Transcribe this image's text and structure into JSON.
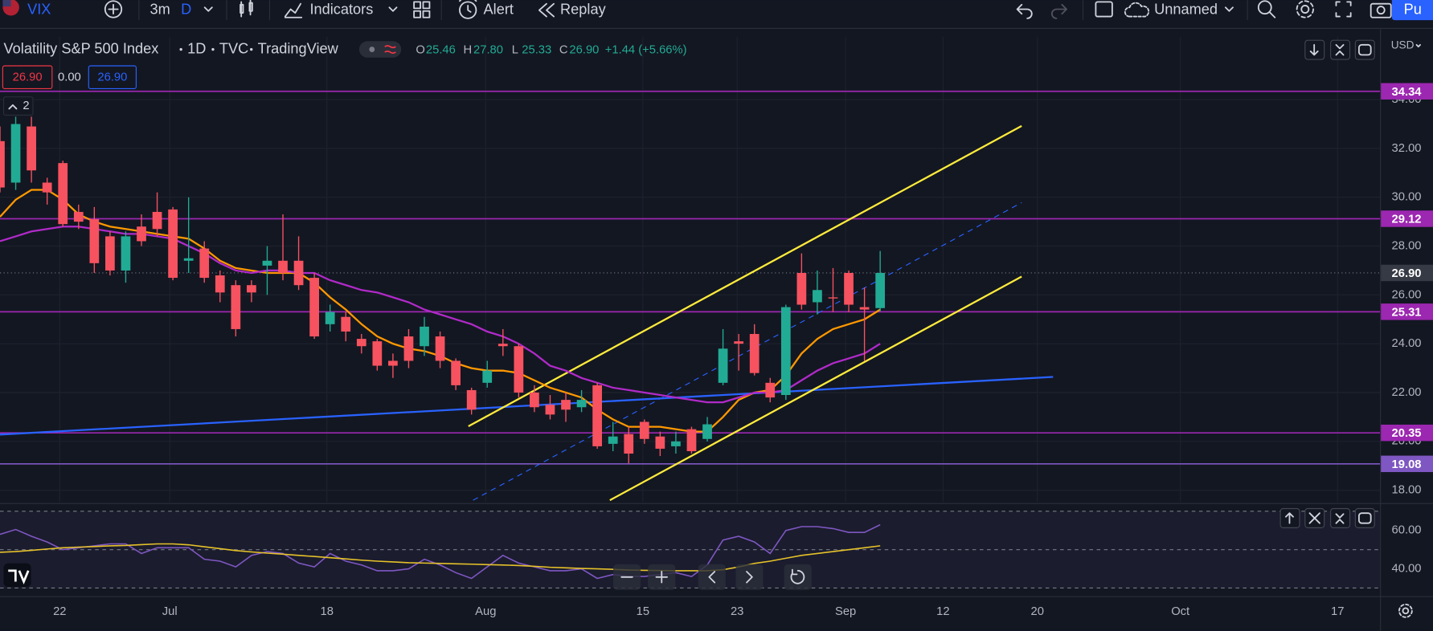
{
  "toolbar": {
    "symbol": "VIX",
    "interval": "3m",
    "interval_type": "D",
    "indicators": "Indicators",
    "alert": "Alert",
    "replay": "Replay",
    "layout_name": "Unnamed",
    "publish": "Pu"
  },
  "legend": {
    "title": "Volatility S&P 500 Index",
    "timeframe": "1D",
    "exchange": "TVC",
    "source": "TradingView",
    "ohlc": [
      {
        "key": "O",
        "value": "25.46"
      },
      {
        "key": "H",
        "value": "27.80"
      },
      {
        "key": "L",
        "value": "25.33"
      },
      {
        "key": "C",
        "value": "26.90"
      }
    ],
    "change": "+1.44 (+5.66%)",
    "bid": "26.90",
    "spread": "0.00",
    "ask": "26.90",
    "indicator_count": "2"
  },
  "currency": "USD",
  "chart_data": [
    {
      "type": "candlestick",
      "up_color": "#22ab94",
      "down_color": "#f7525f",
      "open": [
        32.3,
        30.6,
        32.9,
        30.6,
        31.4,
        29.4,
        29.1,
        28.4,
        27.0,
        28.8,
        29.4,
        29.5,
        27.4,
        27.9,
        26.8,
        26.4,
        26.4,
        27.2,
        27.4,
        27.4,
        26.7,
        24.8,
        25.1,
        24.2,
        24.1,
        23.3,
        24.3,
        23.9,
        24.3,
        23.3,
        22.1,
        22.4,
        24.0,
        23.9,
        22.0,
        21.5,
        21.7,
        21.4,
        22.3,
        19.9,
        20.3,
        20.8,
        20.2,
        19.8,
        20.5,
        20.1,
        22.4,
        24.1,
        24.4,
        22.4,
        21.9,
        26.9,
        25.7,
        25.9,
        26.9,
        25.5,
        25.46
      ],
      "high": [
        32.9,
        33.3,
        33.3,
        30.8,
        31.5,
        29.7,
        29.6,
        28.6,
        28.6,
        29.3,
        30.2,
        29.6,
        30.0,
        28.2,
        27.0,
        26.6,
        26.6,
        28.0,
        29.3,
        28.4,
        26.9,
        25.6,
        25.3,
        24.4,
        24.2,
        23.6,
        24.6,
        25.1,
        24.5,
        23.4,
        22.2,
        23.3,
        24.6,
        24.0,
        22.3,
        21.9,
        22.0,
        22.1,
        22.4,
        20.8,
        20.6,
        20.9,
        20.4,
        20.4,
        20.6,
        21.0,
        24.6,
        24.4,
        24.8,
        22.6,
        25.6,
        27.7,
        27.0,
        27.1,
        27.0,
        26.3,
        27.8
      ],
      "low": [
        30.2,
        30.3,
        30.6,
        29.7,
        28.8,
        28.7,
        26.9,
        26.8,
        26.5,
        28.0,
        28.4,
        26.6,
        26.9,
        26.5,
        25.7,
        24.3,
        25.7,
        26.0,
        26.6,
        26.2,
        24.2,
        24.5,
        24.1,
        23.6,
        22.9,
        22.6,
        23.0,
        23.5,
        23.0,
        22.1,
        21.1,
        22.2,
        23.5,
        21.8,
        21.2,
        20.9,
        20.8,
        21.2,
        19.7,
        19.6,
        19.1,
        19.9,
        19.4,
        19.5,
        19.5,
        20.0,
        22.3,
        22.9,
        22.7,
        21.6,
        21.7,
        25.4,
        25.2,
        25.3,
        25.3,
        23.3,
        25.33
      ],
      "close": [
        30.4,
        33.0,
        31.1,
        30.2,
        28.9,
        29.0,
        27.3,
        27.0,
        28.4,
        28.2,
        28.7,
        26.7,
        27.5,
        26.7,
        26.1,
        24.6,
        26.1,
        27.4,
        26.9,
        26.4,
        24.3,
        25.3,
        24.5,
        23.9,
        23.1,
        23.1,
        23.3,
        24.7,
        23.3,
        22.3,
        21.3,
        22.9,
        23.9,
        22.0,
        21.4,
        21.1,
        21.3,
        21.7,
        19.8,
        20.2,
        19.5,
        20.1,
        19.7,
        20.0,
        19.6,
        20.7,
        23.8,
        24.0,
        22.8,
        21.8,
        25.5,
        25.6,
        26.2,
        25.9,
        25.6,
        25.4,
        26.9
      ],
      "series": [
        {
          "color": "#ff9800",
          "values": [
            29.2,
            29.9,
            30.3,
            30.3,
            29.9,
            29.3,
            29.0,
            28.8,
            28.7,
            28.6,
            28.5,
            28.4,
            28.3,
            27.9,
            27.4,
            27.1,
            27.0,
            26.9,
            26.9,
            26.9,
            26.5,
            25.9,
            25.4,
            24.8,
            24.3,
            24.0,
            23.8,
            23.7,
            23.5,
            23.2,
            23.0,
            22.9,
            22.9,
            22.8,
            22.5,
            22.2,
            22.0,
            21.8,
            21.3,
            20.9,
            20.6,
            20.6,
            20.6,
            20.5,
            20.4,
            20.4,
            21.0,
            21.7,
            22.0,
            22.1,
            22.7,
            23.6,
            24.2,
            24.6,
            24.8,
            25.0,
            25.4
          ]
        },
        {
          "color": "#b02ac8",
          "values": [
            28.2,
            28.4,
            28.6,
            28.7,
            28.8,
            28.8,
            28.7,
            28.6,
            28.5,
            28.5,
            28.4,
            28.3,
            28.0,
            27.7,
            27.3,
            27.0,
            26.9,
            27.0,
            27.0,
            26.9,
            26.9,
            26.6,
            26.4,
            26.2,
            26.1,
            25.9,
            25.7,
            25.4,
            25.2,
            25.0,
            24.8,
            24.5,
            24.3,
            24.0,
            23.6,
            23.1,
            22.9,
            22.6,
            22.4,
            22.2,
            22.1,
            22.0,
            21.9,
            21.8,
            21.7,
            21.6,
            21.6,
            21.8,
            22.0,
            22.0,
            22.1,
            22.5,
            22.9,
            23.2,
            23.4,
            23.6,
            24.0
          ]
        }
      ],
      "hlines": {
        "values": [
          34.34,
          29.12,
          25.31,
          20.35,
          19.08
        ],
        "colors": [
          "#9c27b0",
          "#9c27b0",
          "#9c27b0",
          "#9c27b0",
          "#7e57c2"
        ]
      },
      "last_price": {
        "value": 26.9,
        "label": "26.90"
      },
      "trendlines": [
        {
          "color": "#2962ff",
          "dashed": false,
          "x": [
            0,
            67.0
          ],
          "y": [
            20.28,
            22.64
          ]
        },
        {
          "color": "#ffeb3b",
          "dashed": false,
          "x": [
            29.8,
            65.0
          ],
          "y": [
            20.62,
            32.92
          ]
        },
        {
          "color": "#ffeb3b",
          "dashed": false,
          "x": [
            38.8,
            65.0
          ],
          "y": [
            17.59,
            26.75
          ]
        },
        {
          "color": "#2962ff",
          "dashed": true,
          "x": [
            30.1,
            65.0
          ],
          "y": [
            17.59,
            29.78
          ]
        }
      ],
      "xlim": [
        0,
        87.8
      ],
      "ylim": [
        17.51,
        36.58
      ],
      "yticks": [
        {
          "value": 18,
          "label": "18.00"
        },
        {
          "value": 20,
          "label": "20.00"
        },
        {
          "value": 22,
          "label": "22.00"
        },
        {
          "value": 24,
          "label": "24.00"
        },
        {
          "value": 26,
          "label": "26.00"
        },
        {
          "value": 28,
          "label": "28.00"
        },
        {
          "value": 30,
          "label": "30.00"
        },
        {
          "value": 32,
          "label": "32.00"
        },
        {
          "value": 34,
          "label": "34.00"
        }
      ],
      "xticks": [
        {
          "value": 3.8,
          "label": "22"
        },
        {
          "value": 10.8,
          "label": "Jul"
        },
        {
          "value": 20.8,
          "label": "18"
        },
        {
          "value": 30.9,
          "label": "Aug"
        },
        {
          "value": 40.9,
          "label": "15"
        },
        {
          "value": 46.9,
          "label": "23"
        },
        {
          "value": 53.8,
          "label": "Sep"
        },
        {
          "value": 60.0,
          "label": "12"
        },
        {
          "value": 66.0,
          "label": "20"
        },
        {
          "value": 75.1,
          "label": "Oct"
        },
        {
          "value": 85.1,
          "label": "17"
        }
      ]
    },
    {
      "type": "line",
      "series": [
        {
          "color": "#7e57c2",
          "values": [
            58,
            60.5,
            57,
            54,
            50,
            51,
            52,
            53,
            53,
            48,
            51,
            51,
            51,
            45,
            44,
            41,
            47,
            49,
            48,
            43,
            41,
            48,
            44,
            42,
            39,
            39,
            40,
            45,
            42,
            38,
            35,
            41,
            47,
            43,
            41,
            39,
            39,
            40,
            35,
            37,
            36,
            36,
            37,
            38,
            36,
            42,
            55,
            57,
            54,
            48,
            60,
            62,
            62,
            61,
            59,
            59,
            63
          ]
        },
        {
          "color": "#e6c229",
          "values": [
            48.6,
            49,
            49.6,
            50.3,
            51,
            51.3,
            51.6,
            52,
            52.2,
            52.6,
            53,
            53,
            52.5,
            51.5,
            50.5,
            49.5,
            48.8,
            48.2,
            47.6,
            47,
            46.4,
            45.8,
            45.2,
            44.5,
            44,
            43.6,
            43.2,
            43,
            42.8,
            42.6,
            42.4,
            42.2,
            42,
            41.7,
            41.3,
            40.8,
            40.5,
            40.2,
            40,
            39.7,
            39.4,
            39.2,
            39.1,
            39,
            39,
            39,
            39.5,
            41,
            42.8,
            44,
            45.5,
            47,
            48,
            49,
            50,
            51,
            52
          ]
        }
      ],
      "levels": [
        70,
        50,
        30
      ],
      "xlim": [
        0,
        87.8
      ],
      "ylim": [
        28.1,
        71.4
      ],
      "yticks": [
        {
          "value": 40,
          "label": "40.00"
        },
        {
          "value": 60,
          "label": "60.00"
        }
      ]
    }
  ]
}
